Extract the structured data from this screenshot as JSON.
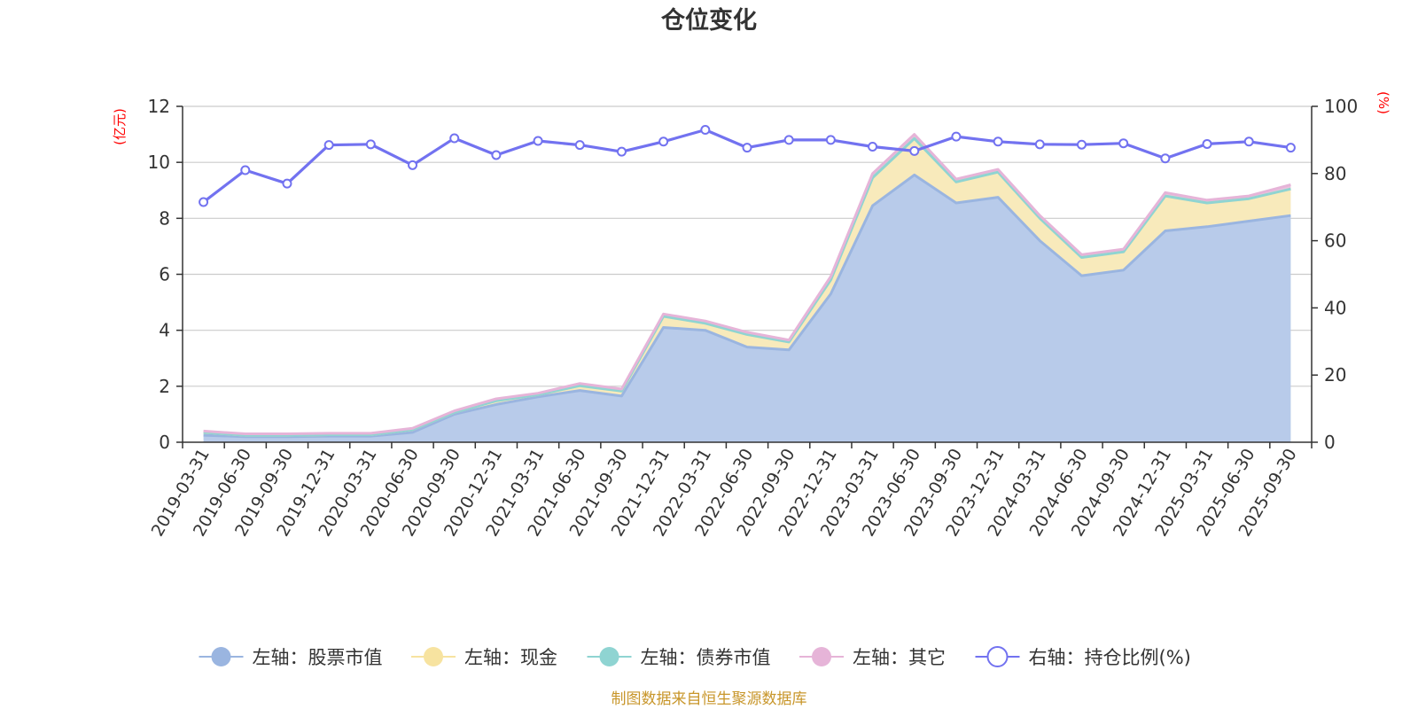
{
  "chart_data": {
    "type": "area",
    "title": "仓位变化",
    "left_axis": {
      "unit": "(亿元)",
      "min": 0,
      "max": 12,
      "ticks": [
        0,
        2,
        4,
        6,
        8,
        10,
        12
      ]
    },
    "right_axis": {
      "unit": "(%)",
      "min": 0,
      "max": 100,
      "ticks": [
        0,
        20,
        40,
        60,
        80,
        100
      ]
    },
    "categories": [
      "2019-03-31",
      "2019-06-30",
      "2019-09-30",
      "2019-12-31",
      "2020-03-31",
      "2020-06-30",
      "2020-09-30",
      "2020-12-31",
      "2021-03-31",
      "2021-06-30",
      "2021-09-30",
      "2021-12-31",
      "2022-03-31",
      "2022-06-30",
      "2022-09-30",
      "2022-12-31",
      "2023-03-31",
      "2023-06-30",
      "2023-09-30",
      "2023-12-31",
      "2024-03-31",
      "2024-06-30",
      "2024-09-30",
      "2024-12-31",
      "2025-03-31",
      "2025-06-30",
      "2025-09-30"
    ],
    "series": [
      {
        "name": "左轴：股票市值",
        "axis": "left",
        "stack": true,
        "color": "#9ab5e0",
        "fill": "#b8cbea",
        "values": [
          0.25,
          0.2,
          0.2,
          0.22,
          0.22,
          0.35,
          1.0,
          1.35,
          1.62,
          1.85,
          1.65,
          4.1,
          4.0,
          3.4,
          3.3,
          5.3,
          8.45,
          9.55,
          8.55,
          8.75,
          7.2,
          5.95,
          6.15,
          7.55,
          7.7,
          7.9,
          8.1
        ]
      },
      {
        "name": "左轴：现金",
        "axis": "left",
        "stack": true,
        "color": "#f7e3a0",
        "fill": "#f8eabb",
        "values": [
          0.1,
          0.05,
          0.05,
          0.05,
          0.05,
          0.1,
          0.07,
          0.13,
          0.08,
          0.17,
          0.18,
          0.4,
          0.25,
          0.45,
          0.28,
          0.5,
          1.0,
          1.3,
          0.75,
          0.9,
          0.8,
          0.65,
          0.65,
          1.25,
          0.85,
          0.8,
          0.95
        ]
      },
      {
        "name": "左轴：债券市值",
        "axis": "left",
        "stack": true,
        "color": "#8fd4d2",
        "fill": "#a8dedc",
        "values": [
          0,
          0,
          0,
          0,
          0,
          0,
          0,
          0,
          0,
          0,
          0,
          0,
          0,
          0,
          0,
          0,
          0,
          0,
          0,
          0,
          0,
          0,
          0,
          0,
          0,
          0,
          0
        ]
      },
      {
        "name": "左轴：其它",
        "axis": "left",
        "stack": true,
        "color": "#e6b4d8",
        "fill": "#ebc3e0",
        "values": [
          0.05,
          0.05,
          0.05,
          0.05,
          0.05,
          0.05,
          0.05,
          0.07,
          0.05,
          0.08,
          0.07,
          0.08,
          0.08,
          0.08,
          0.07,
          0.12,
          0.15,
          0.15,
          0.1,
          0.1,
          0.1,
          0.1,
          0.1,
          0.12,
          0.1,
          0.1,
          0.15
        ]
      },
      {
        "name": "右轴：持仓比例(%)",
        "axis": "right",
        "type": "line",
        "color": "#7272f0",
        "values": [
          71.5,
          81,
          77,
          88.5,
          88.7,
          82.5,
          90.5,
          85.5,
          89.7,
          88.5,
          86.5,
          89.5,
          93,
          87.7,
          90,
          90,
          88,
          86.7,
          91,
          89.5,
          88.7,
          88.6,
          89,
          84.5,
          88.8,
          89.5,
          87.7
        ]
      }
    ],
    "source": "制图数据来自恒生聚源数据库"
  }
}
